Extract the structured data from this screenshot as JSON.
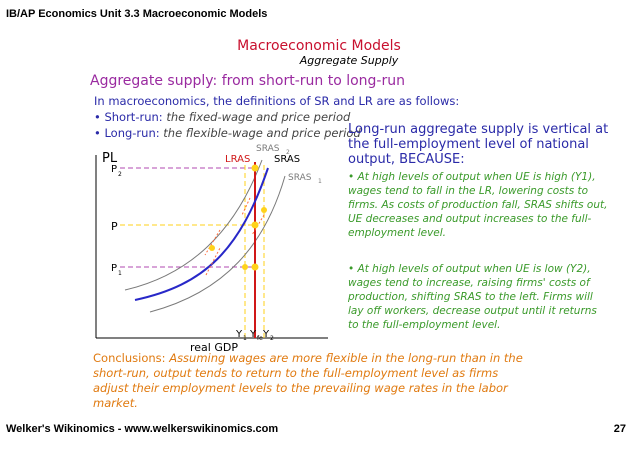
{
  "header": {
    "title": "IB/AP Economics Unit 3.3 Macroeconomic Models"
  },
  "slide": {
    "title": "Macroeconomic Models",
    "subtitle": "Aggregate Supply",
    "heading": "Aggregate supply: from short-run to long-run",
    "intro": "In macroeconomics, the definitions of SR and LR are as follows:",
    "bullets": [
      {
        "term": "Short-run:",
        "definition": "the fixed-wage and price period"
      },
      {
        "term": "Long-run:",
        "definition": "the flexible-wage and price period"
      }
    ],
    "right_heading": "Long-run aggregate supply is vertical at the full-employment level of national output, BECAUSE:",
    "points": [
      {
        "text": "At high levels of output when UE is high (Y1), wages tend to fall in the LR, lowering costs to firms. As costs of production fall, SRAS shifts out, UE decreases and output increases to the full-employment level."
      },
      {
        "text": "At high levels of output when UE is low (Y2), wages tend to increase, raising firms' costs of production, shifting SRAS to the left. Firms will lay off workers, decrease output until it returns to the full-employment level."
      }
    ],
    "conclusion_label": "Conclusions:",
    "conclusion_text": "Assuming wages are more flexible in the long-run than in the short-run, output tends to return to the full-employment level as firms adjust their employment levels to the prevailing wage rates in the labor market."
  },
  "graph": {
    "y_axis_label": "PL",
    "x_axis_label": "real GDP",
    "curves": {
      "lras": "LRAS",
      "sras": "SRAS",
      "sras2": "SRAS",
      "sras2_sub": "2",
      "sras1": "SRAS",
      "sras1_sub": "1"
    },
    "price_levels": {
      "p2": "P",
      "p2_sub": "2",
      "p": "P",
      "p1": "P",
      "p1_sub": "1"
    },
    "outputs": {
      "y1": "Y",
      "y1_sub": "1",
      "yfe": "Y",
      "yfe_sub": "fe",
      "y2": "Y",
      "y2_sub": "2"
    },
    "colors": {
      "lras": "#d01818",
      "sras": "#2828c8",
      "shifted": "#7a7a7a",
      "guide": "#ffd21a",
      "guide_p2": "#b04ab0",
      "point": "#ffd21a",
      "arrow": "#ff6a3a"
    }
  },
  "footer": {
    "left": "Welker's Wikinomics - www.welkerswikinomics.com",
    "page": "27"
  }
}
